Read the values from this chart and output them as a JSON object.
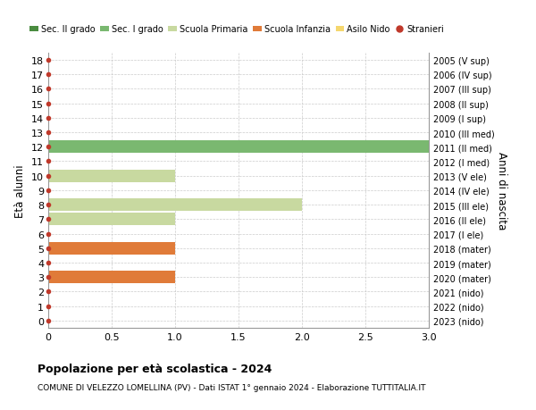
{
  "ages": [
    0,
    1,
    2,
    3,
    4,
    5,
    6,
    7,
    8,
    9,
    10,
    11,
    12,
    13,
    14,
    15,
    16,
    17,
    18
  ],
  "right_labels": [
    "2023 (nido)",
    "2022 (nido)",
    "2021 (nido)",
    "2020 (mater)",
    "2019 (mater)",
    "2018 (mater)",
    "2017 (I ele)",
    "2016 (II ele)",
    "2015 (III ele)",
    "2014 (IV ele)",
    "2013 (V ele)",
    "2012 (I med)",
    "2011 (II med)",
    "2010 (III med)",
    "2009 (I sup)",
    "2008 (II sup)",
    "2007 (III sup)",
    "2006 (IV sup)",
    "2005 (V sup)"
  ],
  "bars": [
    {
      "age": 3,
      "value": 1.0,
      "color": "#e07b39"
    },
    {
      "age": 5,
      "value": 1.0,
      "color": "#e07b39"
    },
    {
      "age": 7,
      "value": 1.0,
      "color": "#c8d9a0"
    },
    {
      "age": 8,
      "value": 2.0,
      "color": "#c8d9a0"
    },
    {
      "age": 10,
      "value": 1.0,
      "color": "#c8d9a0"
    },
    {
      "age": 12,
      "value": 3.0,
      "color": "#7ab870"
    }
  ],
  "stranieri_dot_color": "#c0392b",
  "legend_items": [
    {
      "label": "Sec. II grado",
      "color": "#4a8c40",
      "type": "patch"
    },
    {
      "label": "Sec. I grado",
      "color": "#7ab870",
      "type": "patch"
    },
    {
      "label": "Scuola Primaria",
      "color": "#c8d9a0",
      "type": "patch"
    },
    {
      "label": "Scuola Infanzia",
      "color": "#e07b39",
      "type": "patch"
    },
    {
      "label": "Asilo Nido",
      "color": "#f5d76e",
      "type": "patch"
    },
    {
      "label": "Stranieri",
      "color": "#c0392b",
      "type": "dot"
    }
  ],
  "ylabel": "Età alunni",
  "ylabel_right": "Anni di nascita",
  "xlim": [
    0,
    3.0
  ],
  "ylim": [
    -0.5,
    18.5
  ],
  "xticks": [
    0,
    0.5,
    1.0,
    1.5,
    2.0,
    2.5,
    3.0
  ],
  "yticks": [
    0,
    1,
    2,
    3,
    4,
    5,
    6,
    7,
    8,
    9,
    10,
    11,
    12,
    13,
    14,
    15,
    16,
    17,
    18
  ],
  "title": "Popolazione per età scolastica - 2024",
  "subtitle": "COMUNE DI VELEZZO LOMELLINA (PV) - Dati ISTAT 1° gennaio 2024 - Elaborazione TUTTITALIA.IT",
  "bar_height": 0.85,
  "grid_color": "#cccccc",
  "bg_color": "#ffffff"
}
